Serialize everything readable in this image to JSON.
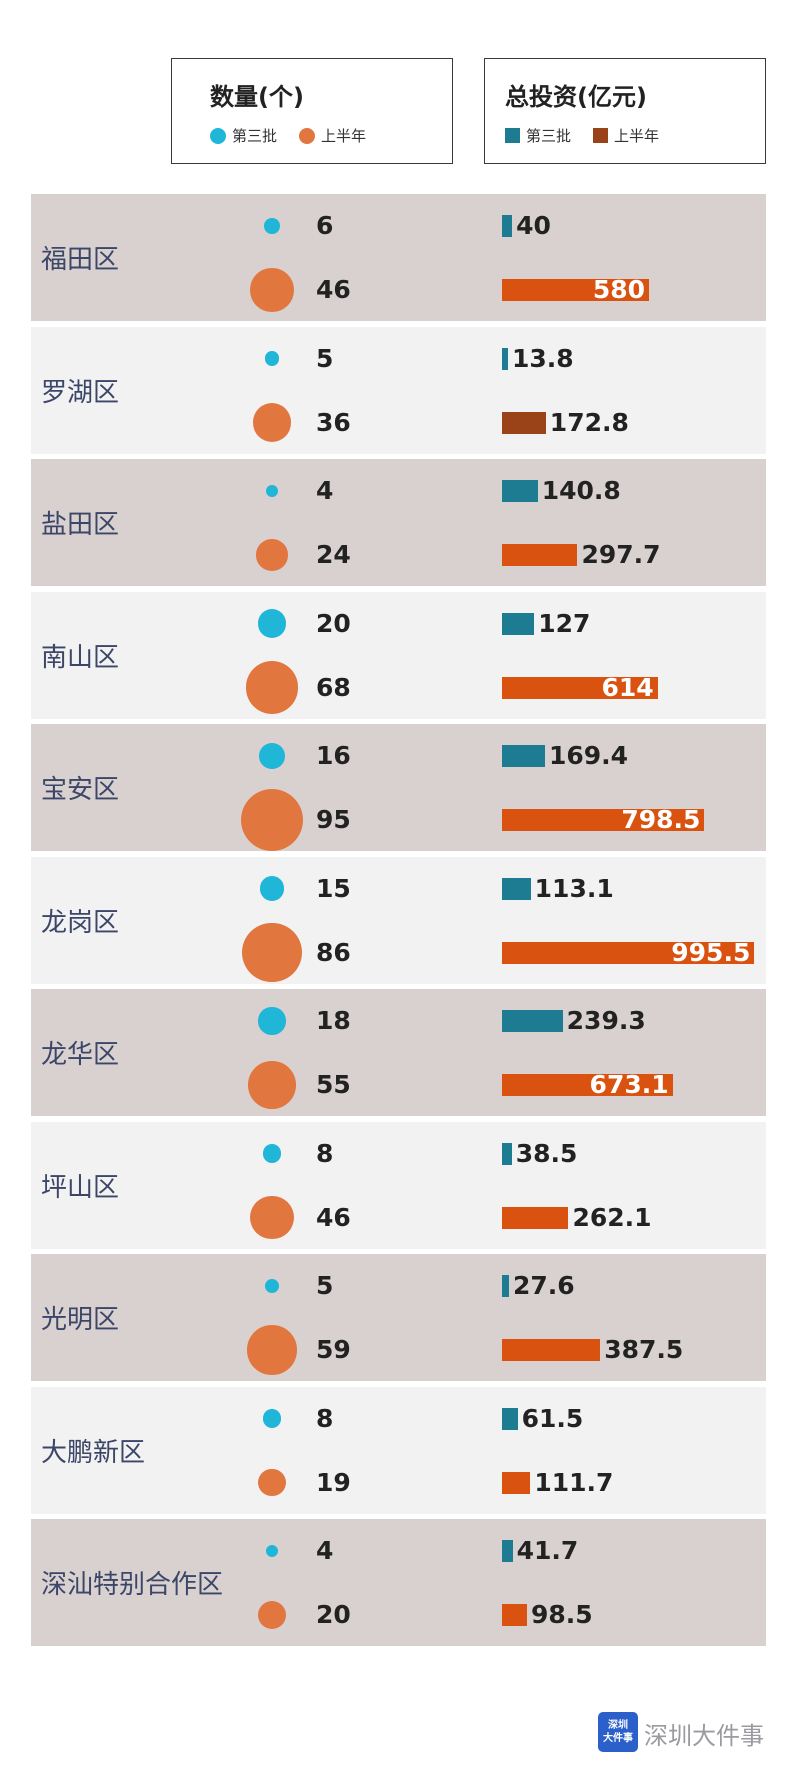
{
  "legend": {
    "count_title": "数量(个)",
    "investment_title": "总投资(亿元)",
    "series_batch3": "第三批",
    "series_h1": "上半年"
  },
  "colors": {
    "batch3_dot": "#1fb6d8",
    "h1_dot": "#e2763f",
    "batch3_bar": "#1d7c91",
    "h1_bar": "#d9520f",
    "h1_bar_luohu": "#9a4218",
    "row_dark": "#d9d1cf",
    "row_light": "#f3f2f2",
    "district_text": "#3b4668"
  },
  "chart_data": {
    "type": "table",
    "series": [
      {
        "name": "第三批",
        "metric": "数量(个)"
      },
      {
        "name": "上半年",
        "metric": "数量(个)"
      },
      {
        "name": "第三批",
        "metric": "总投资(亿元)"
      },
      {
        "name": "上半年",
        "metric": "总投资(亿元)"
      }
    ],
    "rows": [
      {
        "district": "福田区",
        "count_batch3": 6,
        "count_h1": 46,
        "inv_batch3": "40",
        "inv_h1": "580"
      },
      {
        "district": "罗湖区",
        "count_batch3": 5,
        "count_h1": 36,
        "inv_batch3": "13.8",
        "inv_h1": "172.8"
      },
      {
        "district": "盐田区",
        "count_batch3": 4,
        "count_h1": 24,
        "inv_batch3": "140.8",
        "inv_h1": "297.7"
      },
      {
        "district": "南山区",
        "count_batch3": 20,
        "count_h1": 68,
        "inv_batch3": "127",
        "inv_h1": "614"
      },
      {
        "district": "宝安区",
        "count_batch3": 16,
        "count_h1": 95,
        "inv_batch3": "169.4",
        "inv_h1": "798.5"
      },
      {
        "district": "龙岗区",
        "count_batch3": 15,
        "count_h1": 86,
        "inv_batch3": "113.1",
        "inv_h1": "995.5"
      },
      {
        "district": "龙华区",
        "count_batch3": 18,
        "count_h1": 55,
        "inv_batch3": "239.3",
        "inv_h1": "673.1"
      },
      {
        "district": "坪山区",
        "count_batch3": 8,
        "count_h1": 46,
        "inv_batch3": "38.5",
        "inv_h1": "262.1"
      },
      {
        "district": "光明区",
        "count_batch3": 5,
        "count_h1": 59,
        "inv_batch3": "27.6",
        "inv_h1": "387.5"
      },
      {
        "district": "大鹏新区",
        "count_batch3": 8,
        "count_h1": 19,
        "inv_batch3": "61.5",
        "inv_h1": "111.7"
      },
      {
        "district": "深汕特别合作区",
        "count_batch3": 4,
        "count_h1": 20,
        "inv_batch3": "41.7",
        "inv_h1": "98.5"
      }
    ]
  },
  "watermark": {
    "logo_text": "深圳大件事",
    "brand_text": "深圳大件事"
  }
}
